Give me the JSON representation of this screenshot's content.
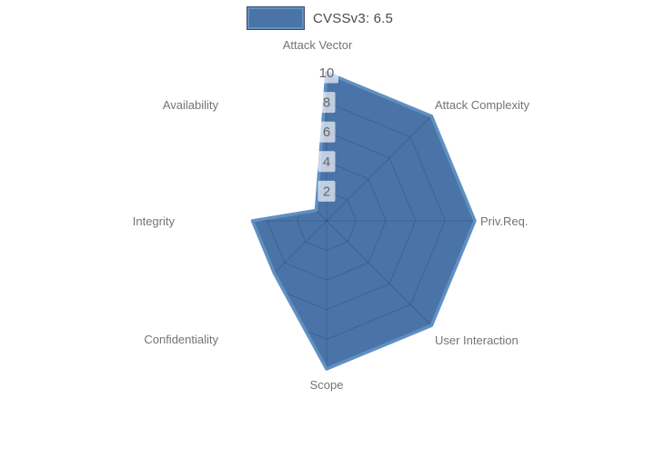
{
  "chart_data": {
    "type": "radar",
    "title": "",
    "legend": {
      "label": "CVSSv3: 6.5"
    },
    "categories": [
      "Attack Vector",
      "Attack Complexity",
      "Priv.Req.",
      "User Interaction",
      "Scope",
      "Confidentiality",
      "Integrity",
      "Availability"
    ],
    "series": [
      {
        "name": "CVSSv3: 6.5",
        "values": [
          10,
          10,
          10,
          10,
          10,
          5,
          5,
          1
        ]
      }
    ],
    "radial_ticks": [
      2,
      4,
      6,
      8,
      10
    ],
    "radial_range": [
      0,
      10
    ],
    "grid": "on",
    "legend_position": "top-center",
    "colors": {
      "fill": "#4a74a8",
      "line": "#6090c2",
      "swatch_border_outer": "#39486b",
      "grid_line": "rgba(25,35,60,0.22)",
      "tick_chip_bg": "rgba(255,255,255,0.65)",
      "tick_text": "#666666",
      "axis_label_text": "#747474",
      "legend_text": "#4a4a4a",
      "background": "#ffffff"
    }
  }
}
